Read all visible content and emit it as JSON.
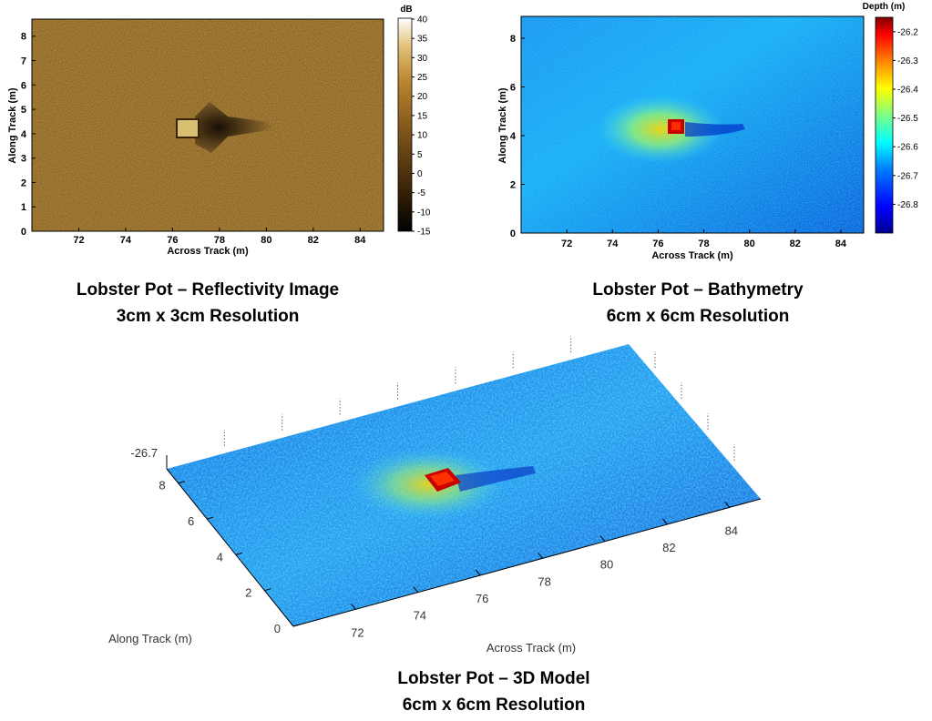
{
  "reflectivity": {
    "caption_line1": "Lobster Pot – Reflectivity Image",
    "caption_line2": "3cm x 3cm Resolution",
    "chart_data": {
      "type": "heatmap",
      "xlabel": "Across Track (m)",
      "ylabel": "Along Track (m)",
      "xlim": [
        70,
        85
      ],
      "ylim": [
        0,
        8.7
      ],
      "xticks": [
        "72",
        "74",
        "76",
        "78",
        "80",
        "82",
        "84"
      ],
      "yticks": [
        "0",
        "1",
        "2",
        "3",
        "4",
        "5",
        "6",
        "7",
        "8"
      ],
      "colorbar_title": "dB",
      "colorbar_range": [
        -15,
        40
      ],
      "colorbar_ticks": [
        "40",
        "35",
        "30",
        "25",
        "20",
        "15",
        "10",
        "5",
        "0",
        "-5",
        "-10",
        "-15"
      ],
      "colormap": [
        "#000000",
        "#3a2408",
        "#7a5118",
        "#b8842e",
        "#e2c27a",
        "#ffffff"
      ]
    }
  },
  "bathymetry": {
    "caption_line1": "Lobster Pot – Bathymetry",
    "caption_line2": "6cm x 6cm Resolution",
    "chart_data": {
      "type": "heatmap",
      "xlabel": "Across Track (m)",
      "ylabel": "Along Track (m)",
      "xlim": [
        70,
        85
      ],
      "ylim": [
        0,
        8.9
      ],
      "xticks": [
        "72",
        "74",
        "76",
        "78",
        "80",
        "82",
        "84"
      ],
      "yticks": [
        "0",
        "2",
        "4",
        "6",
        "8"
      ],
      "colorbar_title": "Depth (m)",
      "colorbar_range": [
        -26.9,
        -26.15
      ],
      "colorbar_ticks": [
        "-26.2",
        "-26.3",
        "-26.4",
        "-26.5",
        "-26.6",
        "-26.7",
        "-26.8"
      ],
      "colormap": [
        "#00008f",
        "#0000ff",
        "#0080ff",
        "#00ffff",
        "#80ff80",
        "#ffff00",
        "#ff8000",
        "#ff0000",
        "#800000"
      ]
    }
  },
  "model3d": {
    "caption_line1": "Lobster Pot – 3D Model",
    "caption_line2": "6cm x 6cm Resolution",
    "chart_data": {
      "type": "heatmap",
      "xlabel": "Across Track (m)",
      "ylabel": "Along Track (m)",
      "zlabel_tick": "-26.7",
      "xticks": [
        "72",
        "74",
        "76",
        "78",
        "80",
        "82",
        "84"
      ],
      "yticks": [
        "0",
        "2",
        "4",
        "6",
        "8"
      ]
    }
  }
}
